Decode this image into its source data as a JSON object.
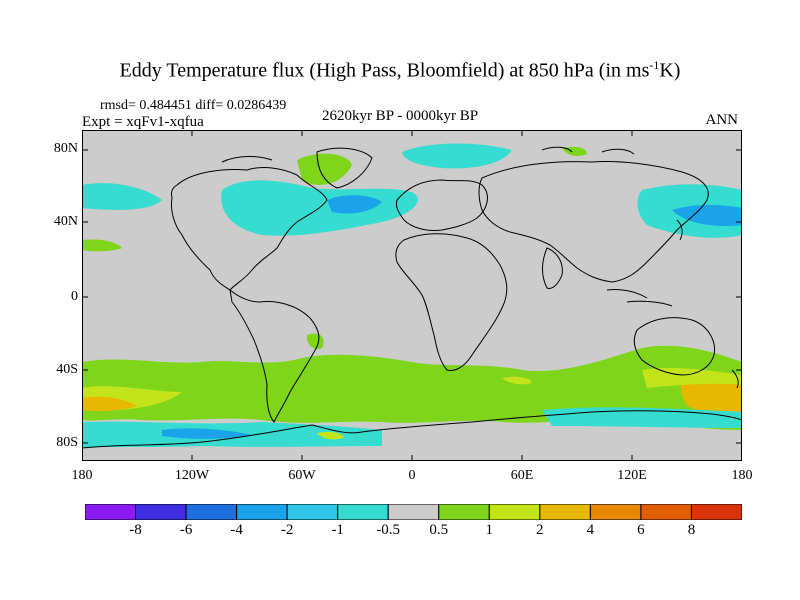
{
  "header": {
    "title_main": "Eddy Temperature flux (High Pass, Bloomfield) at 850 hPa (in ms",
    "title_sup": "-1",
    "title_end": "K)",
    "stats": "rmsd= 0.484451 diff= 0.0286439",
    "experiment": "Expt = xqFv1-xqfua",
    "period": "2620kyr BP - 0000kyr BP",
    "season": "ANN"
  },
  "axes": {
    "lat_labels": [
      "80N",
      "40N",
      "0",
      "40S",
      "80S"
    ],
    "lon_labels": [
      "180",
      "120W",
      "60W",
      "0",
      "60E",
      "120E",
      "180"
    ]
  },
  "colorbar": {
    "labels": [
      "-8",
      "-6",
      "-4",
      "-2",
      "-1",
      "-0.5",
      "0.5",
      "1",
      "2",
      "4",
      "6",
      "8"
    ],
    "colors": [
      "#8c1bf0",
      "#3f2fe0",
      "#1f6fe0",
      "#1aa3e8",
      "#2fc6e8",
      "#36dcd0",
      "#cccccc",
      "#7ed51a",
      "#c3e31a",
      "#e6b800",
      "#e88a00",
      "#e35f00",
      "#d9340a"
    ]
  },
  "colors": {
    "land_background": "#cccccc",
    "coast": "#000000"
  }
}
